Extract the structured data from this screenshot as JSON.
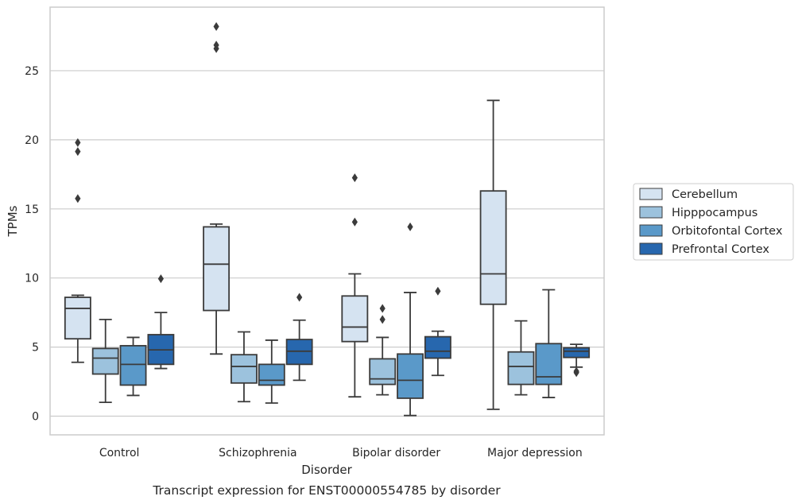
{
  "chart_data": {
    "type": "box",
    "caption": "Transcript expression for ENST00000554785 by disorder",
    "xlabel": "Disorder",
    "ylabel": "TPMs",
    "ylim": [
      -1.35,
      29.6
    ],
    "yticks": [
      0,
      5,
      10,
      15,
      20,
      25
    ],
    "grid": true,
    "legend_position": "right",
    "categories": [
      "Control",
      "Schizophrenia",
      "Bipolar disorder",
      "Major depression"
    ],
    "series": [
      {
        "name": "Cerebellum",
        "color": "#d5e3f1",
        "boxes": [
          {
            "whislo": 3.9,
            "q1": 5.6,
            "med": 7.8,
            "q3": 8.6,
            "whishi": 8.75,
            "fliers": [
              15.75,
              19.15,
              19.8
            ]
          },
          {
            "whislo": 4.5,
            "q1": 7.65,
            "med": 11.0,
            "q3": 13.7,
            "whishi": 13.9,
            "fliers": [
              26.6,
              26.85,
              28.2
            ]
          },
          {
            "whislo": 1.4,
            "q1": 5.4,
            "med": 6.45,
            "q3": 8.7,
            "whishi": 10.3,
            "fliers": [
              14.05,
              17.25
            ]
          },
          {
            "whislo": 0.5,
            "q1": 8.1,
            "med": 10.3,
            "q3": 16.3,
            "whishi": 22.85,
            "fliers": []
          }
        ]
      },
      {
        "name": "Hipppocampus",
        "color": "#9cc2dd",
        "boxes": [
          {
            "whislo": 1.0,
            "q1": 3.05,
            "med": 4.2,
            "q3": 4.9,
            "whishi": 7.0,
            "fliers": []
          },
          {
            "whislo": 1.05,
            "q1": 2.4,
            "med": 3.6,
            "q3": 4.45,
            "whishi": 6.1,
            "fliers": []
          },
          {
            "whislo": 1.55,
            "q1": 2.3,
            "med": 2.7,
            "q3": 4.15,
            "whishi": 5.7,
            "fliers": [
              7.0,
              7.8
            ]
          },
          {
            "whislo": 1.55,
            "q1": 2.3,
            "med": 3.6,
            "q3": 4.65,
            "whishi": 6.9,
            "fliers": []
          }
        ]
      },
      {
        "name": "Orbitofontal Cortex",
        "color": "#5a99c9",
        "boxes": [
          {
            "whislo": 1.5,
            "q1": 2.25,
            "med": 3.75,
            "q3": 5.1,
            "whishi": 5.7,
            "fliers": []
          },
          {
            "whislo": 0.95,
            "q1": 2.25,
            "med": 2.6,
            "q3": 3.75,
            "whishi": 5.5,
            "fliers": []
          },
          {
            "whislo": 0.05,
            "q1": 1.3,
            "med": 2.6,
            "q3": 4.5,
            "whishi": 8.95,
            "fliers": [
              13.7
            ]
          },
          {
            "whislo": 1.35,
            "q1": 2.3,
            "med": 2.85,
            "q3": 5.25,
            "whishi": 9.15,
            "fliers": []
          }
        ]
      },
      {
        "name": "Prefrontal Cortex",
        "color": "#2767ae",
        "boxes": [
          {
            "whislo": 3.45,
            "q1": 3.75,
            "med": 4.8,
            "q3": 5.9,
            "whishi": 7.5,
            "fliers": [
              9.95
            ]
          },
          {
            "whislo": 2.6,
            "q1": 3.75,
            "med": 4.7,
            "q3": 5.55,
            "whishi": 6.95,
            "fliers": [
              8.6
            ]
          },
          {
            "whislo": 2.95,
            "q1": 4.2,
            "med": 4.7,
            "q3": 5.75,
            "whishi": 6.15,
            "fliers": [
              9.05
            ]
          },
          {
            "whislo": 3.55,
            "q1": 4.25,
            "med": 4.7,
            "q3": 4.95,
            "whishi": 5.2,
            "fliers": [
              3.15,
              3.25
            ]
          }
        ]
      }
    ]
  }
}
